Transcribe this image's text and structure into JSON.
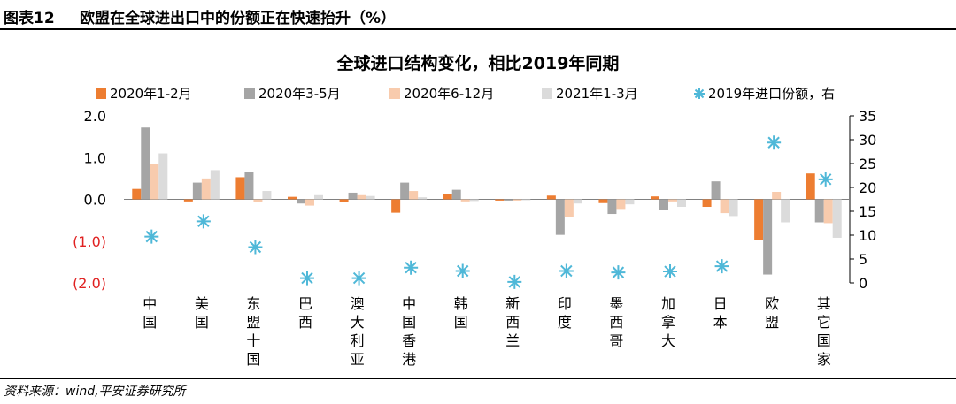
{
  "header": {
    "figure_label": "图表12",
    "figure_title": "欧盟在全球进出口中的份额正在快速抬升（%）"
  },
  "footer": {
    "source": "资料来源：wind,平安证券研究所"
  },
  "colors": {
    "s1": "#ED7D31",
    "s2": "#A5A5A5",
    "s3": "#F8CBAD",
    "s4": "#DBDBDB",
    "s5": "#4FB8D8",
    "negative_tick": "#E02020"
  },
  "chart_data": {
    "type": "bar",
    "title": "全球进口结构变化，相比2019年同期",
    "categories": [
      "中国",
      "美国",
      "东盟十国",
      "巴西",
      "澳大利亚",
      "中国香港",
      "韩国",
      "新西兰",
      "印度",
      "墨西哥",
      "加拿大",
      "日本",
      "欧盟",
      "其它国家"
    ],
    "series": [
      {
        "name": "2020年1-2月",
        "axis": "left",
        "kind": "bar",
        "color": "#ED7D31",
        "values": [
          0.25,
          -0.05,
          0.53,
          0.06,
          -0.06,
          -0.32,
          0.12,
          -0.03,
          0.09,
          -0.09,
          0.07,
          -0.18,
          -0.98,
          0.62
        ]
      },
      {
        "name": "2020年3-5月",
        "axis": "left",
        "kind": "bar",
        "color": "#A5A5A5",
        "values": [
          1.72,
          0.4,
          0.65,
          -0.1,
          0.16,
          0.4,
          0.23,
          -0.03,
          -0.85,
          -0.35,
          -0.25,
          0.43,
          -1.8,
          -0.55
        ]
      },
      {
        "name": "2020年6-12月",
        "axis": "left",
        "kind": "bar",
        "color": "#F8CBAD",
        "values": [
          0.85,
          0.5,
          -0.06,
          -0.15,
          0.1,
          0.2,
          -0.05,
          -0.03,
          -0.42,
          -0.23,
          -0.05,
          -0.33,
          0.18,
          -0.57
        ]
      },
      {
        "name": "2021年1-3月",
        "axis": "left",
        "kind": "bar",
        "color": "#DBDBDB",
        "values": [
          1.1,
          0.7,
          0.2,
          0.1,
          0.08,
          0.05,
          -0.04,
          -0.02,
          -0.1,
          -0.12,
          -0.18,
          -0.4,
          -0.55,
          -0.92
        ]
      },
      {
        "name": "2019年进口份额，右",
        "axis": "right",
        "kind": "scatter",
        "color": "#4FB8D8",
        "values": [
          9.7,
          12.9,
          7.5,
          1.0,
          1.0,
          3.2,
          2.5,
          0.2,
          2.5,
          2.2,
          2.4,
          3.5,
          29.4,
          21.7
        ]
      }
    ],
    "y_left": {
      "range": [
        -2.0,
        2.0
      ],
      "ticks": [
        2.0,
        1.0,
        0.0,
        -1.0,
        -2.0
      ],
      "tick_labels": [
        "2.0",
        "1.0",
        "0.0",
        "(1.0)",
        "(2.0)"
      ]
    },
    "y_right": {
      "range": [
        0,
        35
      ],
      "ticks": [
        0,
        5,
        10,
        15,
        20,
        25,
        30,
        35
      ],
      "tick_labels": [
        "0",
        "5",
        "10",
        "15",
        "20",
        "25",
        "30",
        "35"
      ]
    },
    "legend_position": "top",
    "grid": false
  }
}
